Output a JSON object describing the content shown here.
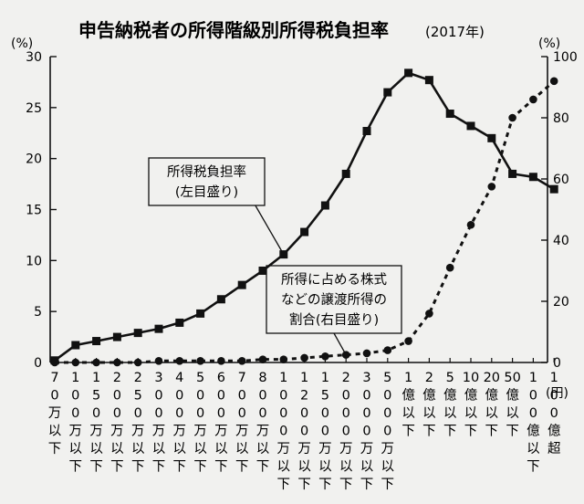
{
  "chart_data": {
    "type": "line",
    "title": "申告納税者の所得階級別所得税負担率",
    "title_year": "(2017年)",
    "left_axis": {
      "unit": "(%)",
      "range": [
        0,
        30
      ],
      "ticks": [
        "0",
        "5",
        "10",
        "15",
        "20",
        "25",
        "30"
      ]
    },
    "right_axis": {
      "unit": "(%)",
      "range": [
        0,
        100
      ],
      "ticks": [
        "0",
        "20",
        "40",
        "60",
        "80",
        "100"
      ]
    },
    "x_unit": "(円)",
    "categories": [
      [
        "7",
        "0",
        "万",
        "以",
        "下"
      ],
      [
        "1",
        "0",
        "0",
        "万",
        "以",
        "下"
      ],
      [
        "1",
        "5",
        "0",
        "万",
        "以",
        "下"
      ],
      [
        "2",
        "0",
        "0",
        "万",
        "以",
        "下"
      ],
      [
        "2",
        "5",
        "0",
        "万",
        "以",
        "下"
      ],
      [
        "3",
        "0",
        "0",
        "万",
        "以",
        "下"
      ],
      [
        "4",
        "0",
        "0",
        "万",
        "以",
        "下"
      ],
      [
        "5",
        "0",
        "0",
        "万",
        "以",
        "下"
      ],
      [
        "6",
        "0",
        "0",
        "万",
        "以",
        "下"
      ],
      [
        "7",
        "0",
        "0",
        "万",
        "以",
        "下"
      ],
      [
        "8",
        "0",
        "0",
        "万",
        "以",
        "下"
      ],
      [
        "1",
        "0",
        "0",
        "0",
        "万",
        "以",
        "下"
      ],
      [
        "1",
        "2",
        "0",
        "0",
        "万",
        "以",
        "下"
      ],
      [
        "1",
        "5",
        "0",
        "0",
        "万",
        "以",
        "下"
      ],
      [
        "2",
        "0",
        "0",
        "0",
        "万",
        "以",
        "下"
      ],
      [
        "3",
        "0",
        "0",
        "0",
        "万",
        "以",
        "下"
      ],
      [
        "5",
        "0",
        "0",
        "0",
        "万",
        "以",
        "下"
      ],
      [
        "1",
        "億",
        "以",
        "下"
      ],
      [
        "2",
        "億",
        "以",
        "下"
      ],
      [
        "5",
        "億",
        "以",
        "下"
      ],
      [
        "10",
        "億",
        "以",
        "下"
      ],
      [
        "20",
        "億",
        "以",
        "下"
      ],
      [
        "50",
        "億",
        "以",
        "下"
      ],
      [
        "1",
        "0",
        "0",
        "億",
        "以",
        "下"
      ],
      [
        "1",
        "0",
        "0",
        "億",
        "超"
      ]
    ],
    "series": [
      {
        "name": "所得税負担率(左目盛り)",
        "axis": "left",
        "marker": "square",
        "style": "solid",
        "values": [
          0.2,
          1.7,
          2.1,
          2.5,
          2.9,
          3.3,
          3.9,
          4.8,
          6.2,
          7.6,
          9.0,
          10.6,
          12.8,
          15.4,
          18.5,
          22.7,
          26.5,
          28.4,
          27.7,
          24.4,
          23.2,
          22.0,
          18.5,
          18.2,
          17.0
        ]
      },
      {
        "name": "所得に占める株式などの譲渡所得の割合(右目盛り)",
        "axis": "right",
        "marker": "circle",
        "style": "dotted",
        "values": [
          0.0,
          0.0,
          0.0,
          0.0,
          0.0,
          0.5,
          0.5,
          0.5,
          0.5,
          0.5,
          1.0,
          1.0,
          1.5,
          2.0,
          2.5,
          3.0,
          4.0,
          7.0,
          16.0,
          31.0,
          45.0,
          57.5,
          80.0,
          86.0,
          92.0
        ]
      }
    ],
    "annotations": [
      {
        "for_series": 0,
        "lines": [
          "所得税負担率",
          "(左目盛り)"
        ]
      },
      {
        "for_series": 1,
        "lines": [
          "所得に占める株式",
          "などの譲渡所得の",
          "割合(右目盛り)"
        ]
      }
    ],
    "grid": false,
    "legend": "none"
  }
}
